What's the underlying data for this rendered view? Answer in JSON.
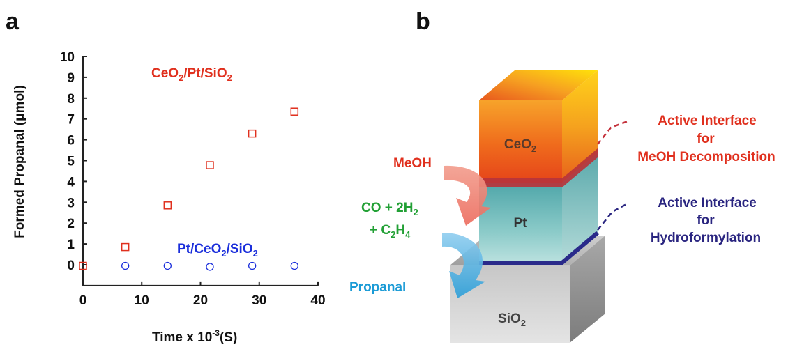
{
  "panel_labels": {
    "a": "a",
    "b": "b"
  },
  "chart_data": {
    "type": "scatter",
    "xlabel": "Time x 10",
    "xlabel_exp": "-3",
    "xlabel_unit": "(S)",
    "ylabel": "Formed Propanal (μmol)",
    "xlim": [
      0,
      40
    ],
    "ylim": [
      -1,
      10
    ],
    "xticks": [
      0,
      10,
      20,
      30,
      40
    ],
    "yticks": [
      0,
      1,
      2,
      3,
      4,
      5,
      6,
      7,
      8,
      9,
      10
    ],
    "grid": false,
    "series": [
      {
        "name": "CeO2/Pt/SiO2",
        "name_parts": [
          "CeO",
          "2",
          "/Pt/SiO",
          "2"
        ],
        "marker": "square",
        "color": "#e0301e",
        "x": [
          0,
          7.2,
          14.4,
          21.6,
          28.8,
          36
        ],
        "y": [
          -0.05,
          0.85,
          2.85,
          4.78,
          6.3,
          7.35
        ]
      },
      {
        "name": "Pt/CeO2/SiO2",
        "name_parts": [
          "Pt/CeO",
          "2",
          "/SiO",
          "2"
        ],
        "marker": "circle",
        "color": "#1a2edb",
        "x": [
          7.2,
          14.4,
          21.6,
          28.8,
          36
        ],
        "y": [
          -0.05,
          -0.05,
          -0.1,
          -0.05,
          -0.05
        ]
      }
    ]
  },
  "diagram": {
    "layers": {
      "ceo2": [
        "CeO",
        "2"
      ],
      "pt": "Pt",
      "sio2": [
        "SiO",
        "2"
      ]
    },
    "left_labels": {
      "meoh": "MeOH",
      "co_line1": [
        "CO + 2H",
        "2"
      ],
      "co_line2": [
        "+ C",
        "2",
        "H",
        "4"
      ],
      "propanal": "Propanal"
    },
    "callouts": {
      "top": [
        "Active Interface",
        "for",
        "MeOH Decomposition"
      ],
      "bottom": [
        "Active Interface",
        "for",
        "Hydroformylation"
      ]
    },
    "colors": {
      "red_text": "#e0301e",
      "green_text": "#22a035",
      "blue_text": "#1b9bd6",
      "navy_text": "#2a2580"
    }
  }
}
